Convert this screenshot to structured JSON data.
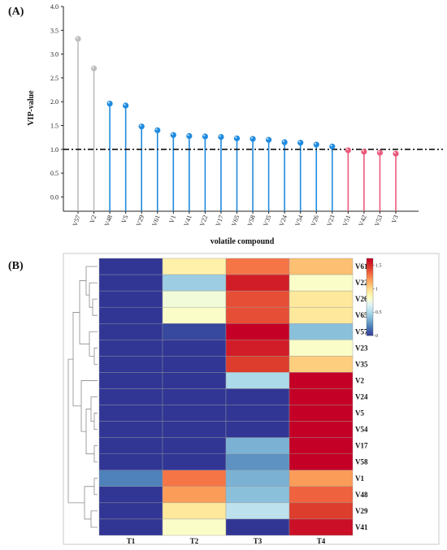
{
  "chart_data": [
    {
      "type": "lollipop",
      "panel_label": "(A)",
      "xlabel": "volatile compound",
      "ylabel": "VIP-value",
      "ylim": [
        -0.3,
        4.0
      ],
      "yticks": [
        "0.0",
        "0.5",
        "1.0",
        "1.5",
        "2.0",
        "2.5",
        "3.0",
        "3.5",
        "4.0"
      ],
      "threshold": 1.0,
      "categories": [
        "V57",
        "V2",
        "V48",
        "V5",
        "V29",
        "V61",
        "V1",
        "V41",
        "V22",
        "V17",
        "V65",
        "V58",
        "V35",
        "V24",
        "V54",
        "V26",
        "V23",
        "V51",
        "V42",
        "V53",
        "V3"
      ],
      "values": [
        3.32,
        2.7,
        1.96,
        1.92,
        1.48,
        1.4,
        1.3,
        1.28,
        1.27,
        1.26,
        1.23,
        1.22,
        1.2,
        1.15,
        1.14,
        1.1,
        1.06,
        0.98,
        0.95,
        0.93,
        0.91
      ],
      "groups": [
        "gray",
        "gray",
        "blue",
        "blue",
        "blue",
        "blue",
        "blue",
        "blue",
        "blue",
        "blue",
        "blue",
        "blue",
        "blue",
        "blue",
        "blue",
        "blue",
        "blue",
        "red",
        "red",
        "red",
        "red"
      ],
      "colors": {
        "gray": "#bdbdbd",
        "blue": "#1f8be0",
        "red": "#ea5a7a",
        "threshold": "#111111"
      }
    },
    {
      "type": "heatmap",
      "panel_label": "(B)",
      "columns": [
        "T1",
        "T2",
        "T3",
        "T4"
      ],
      "rows": [
        "V61",
        "V22",
        "V26",
        "V65",
        "V57",
        "V23",
        "V35",
        "V2",
        "V24",
        "V5",
        "V54",
        "V17",
        "V58",
        "V1",
        "V48",
        "V29",
        "V41"
      ],
      "values": [
        [
          0.0,
          0.9,
          1.3,
          1.1
        ],
        [
          0.0,
          0.45,
          1.55,
          0.8
        ],
        [
          0.0,
          0.75,
          1.4,
          0.95
        ],
        [
          0.0,
          0.8,
          1.4,
          0.95
        ],
        [
          0.0,
          0.05,
          1.65,
          0.4
        ],
        [
          0.0,
          0.0,
          1.55,
          0.8
        ],
        [
          0.0,
          0.0,
          1.45,
          1.05
        ],
        [
          0.0,
          0.0,
          0.5,
          1.65
        ],
        [
          0.0,
          0.0,
          0.0,
          1.65
        ],
        [
          0.0,
          0.0,
          0.0,
          1.65
        ],
        [
          0.0,
          0.0,
          0.0,
          1.65
        ],
        [
          0.0,
          0.0,
          0.35,
          1.65
        ],
        [
          0.0,
          0.0,
          0.25,
          1.65
        ],
        [
          0.2,
          1.3,
          0.35,
          1.2
        ],
        [
          0.0,
          1.2,
          0.4,
          1.35
        ],
        [
          0.0,
          0.95,
          0.55,
          1.45
        ],
        [
          0.0,
          0.8,
          0.0,
          1.6
        ]
      ],
      "colorbar": {
        "min": 0,
        "max": 1.65,
        "ticks": [
          "0",
          "0.5",
          "1",
          "1.5"
        ],
        "tick_values": [
          0,
          0.5,
          1,
          1.5
        ]
      },
      "colorscale": [
        "#313695",
        "#4575b4",
        "#74add1",
        "#abd9e9",
        "#e0f3f8",
        "#ffffbf",
        "#fee090",
        "#fdae61",
        "#f46d43",
        "#d73027",
        "#c40026"
      ],
      "dendrogram": "left"
    }
  ]
}
